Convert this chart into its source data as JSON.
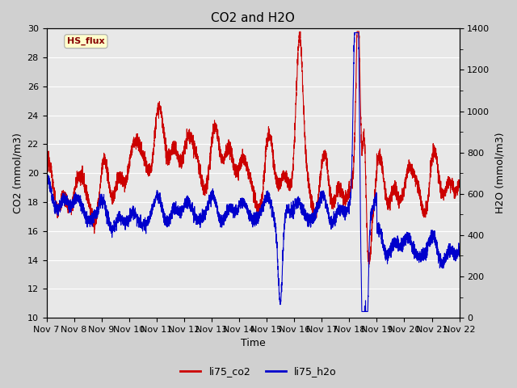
{
  "title": "CO2 and H2O",
  "xlabel": "Time",
  "ylabel_left": "CO2 (mmol/m3)",
  "ylabel_right": "H2O (mmol/m3)",
  "ylim_left": [
    10,
    30
  ],
  "ylim_right": [
    0,
    1400
  ],
  "yticks_left": [
    10,
    12,
    14,
    16,
    18,
    20,
    22,
    24,
    26,
    28,
    30
  ],
  "yticks_right": [
    0,
    200,
    400,
    600,
    800,
    1000,
    1200,
    1400
  ],
  "xtick_labels": [
    "Nov 7",
    "Nov 8",
    "Nov 9",
    "Nov 10",
    "Nov 11",
    "Nov 12",
    "Nov 13",
    "Nov 14",
    "Nov 15",
    "Nov 16",
    "Nov 17",
    "Nov 18",
    "Nov 19",
    "Nov 20",
    "Nov 21",
    "Nov 22"
  ],
  "co2_color": "#cc0000",
  "h2o_color": "#0000cc",
  "fig_bg_color": "#d0d0d0",
  "plot_bg_color": "#e8e8e8",
  "grid_color": "#ffffff",
  "annotation_text": "HS_flux",
  "annotation_color": "#880000",
  "annotation_bg": "#ffffcc",
  "annotation_edge": "#aaaaaa",
  "legend_co2": "li75_co2",
  "legend_h2o": "li75_h2o",
  "line_width": 0.8,
  "title_fontsize": 11,
  "label_fontsize": 9,
  "tick_fontsize": 8
}
